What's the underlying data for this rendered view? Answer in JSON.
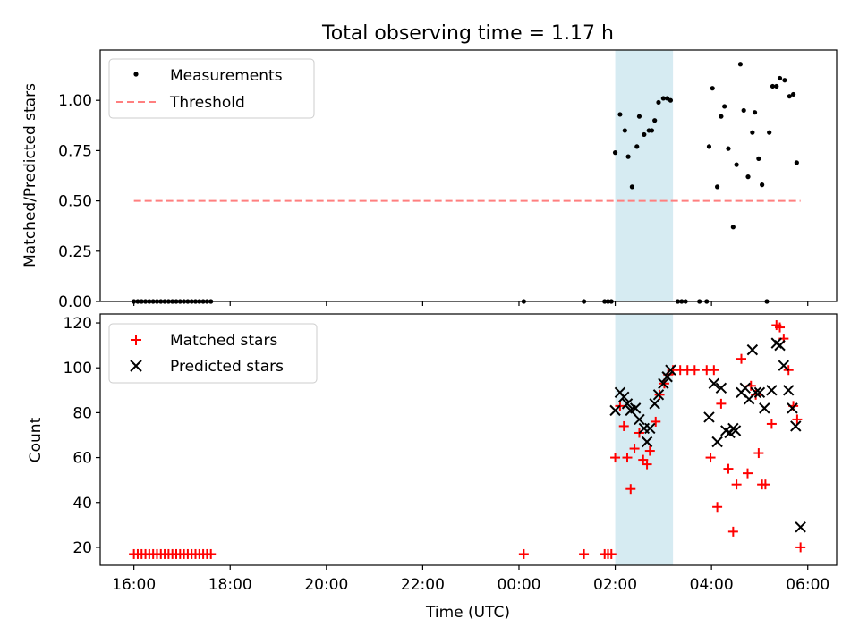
{
  "figure": {
    "title": "Total observing time = 1.17 h",
    "xlabel": "Time (UTC)"
  },
  "chart_data": [
    {
      "type": "scatter",
      "ylabel": "Matched/Predicted stars",
      "xlim_hours": [
        -0.7,
        14.6
      ],
      "ylim": [
        0,
        1.25
      ],
      "yticks": [
        0.0,
        0.25,
        0.5,
        0.75,
        1.0
      ],
      "ytick_labels": [
        "0.00",
        "0.25",
        "0.50",
        "0.75",
        "1.00"
      ],
      "shaded_span_hours": [
        10.0,
        11.2
      ],
      "legend_position": "upper left",
      "legend": [
        {
          "label": "Measurements",
          "marker": "dot",
          "color": "#000000"
        },
        {
          "label": "Threshold",
          "marker": "dashed-line",
          "color": "#ff7f7f"
        }
      ],
      "threshold": {
        "y": 0.5,
        "x_from_hours": 0.0,
        "x_to_hours": 13.85
      },
      "series": [
        {
          "name": "Measurements",
          "color": "#000000",
          "points": [
            [
              0.0,
              0
            ],
            [
              0.08,
              0
            ],
            [
              0.16,
              0
            ],
            [
              0.24,
              0
            ],
            [
              0.32,
              0
            ],
            [
              0.4,
              0
            ],
            [
              0.48,
              0
            ],
            [
              0.56,
              0
            ],
            [
              0.64,
              0
            ],
            [
              0.72,
              0
            ],
            [
              0.8,
              0
            ],
            [
              0.88,
              0
            ],
            [
              0.96,
              0
            ],
            [
              1.04,
              0
            ],
            [
              1.12,
              0
            ],
            [
              1.2,
              0
            ],
            [
              1.28,
              0
            ],
            [
              1.36,
              0
            ],
            [
              1.44,
              0
            ],
            [
              1.52,
              0
            ],
            [
              1.6,
              0
            ],
            [
              8.1,
              0
            ],
            [
              9.35,
              0
            ],
            [
              9.78,
              0
            ],
            [
              9.85,
              0
            ],
            [
              9.92,
              0
            ],
            [
              10.0,
              0.74
            ],
            [
              10.1,
              0.93
            ],
            [
              10.2,
              0.85
            ],
            [
              10.27,
              0.72
            ],
            [
              10.35,
              0.57
            ],
            [
              10.45,
              0.77
            ],
            [
              10.5,
              0.92
            ],
            [
              10.6,
              0.83
            ],
            [
              10.7,
              0.85
            ],
            [
              10.76,
              0.85
            ],
            [
              10.82,
              0.9
            ],
            [
              10.9,
              0.99
            ],
            [
              11.0,
              1.01
            ],
            [
              11.08,
              1.01
            ],
            [
              11.15,
              1.0
            ],
            [
              11.3,
              0
            ],
            [
              11.38,
              0
            ],
            [
              11.46,
              0
            ],
            [
              11.75,
              0
            ],
            [
              11.9,
              0
            ],
            [
              11.95,
              0.77
            ],
            [
              12.02,
              1.06
            ],
            [
              12.12,
              0.57
            ],
            [
              12.2,
              0.92
            ],
            [
              12.27,
              0.97
            ],
            [
              12.35,
              0.76
            ],
            [
              12.45,
              0.37
            ],
            [
              12.52,
              0.68
            ],
            [
              12.6,
              1.18
            ],
            [
              12.67,
              0.95
            ],
            [
              12.76,
              0.62
            ],
            [
              12.85,
              0.84
            ],
            [
              12.9,
              0.94
            ],
            [
              12.98,
              0.71
            ],
            [
              13.05,
              0.58
            ],
            [
              13.15,
              0
            ],
            [
              13.2,
              0.84
            ],
            [
              13.27,
              1.07
            ],
            [
              13.35,
              1.07
            ],
            [
              13.42,
              1.11
            ],
            [
              13.52,
              1.1
            ],
            [
              13.62,
              1.02
            ],
            [
              13.7,
              1.03
            ],
            [
              13.77,
              0.69
            ]
          ]
        }
      ]
    },
    {
      "type": "scatter",
      "ylabel": "Count",
      "xlabel": "Time (UTC)",
      "xlim_hours": [
        -0.7,
        14.6
      ],
      "ylim": [
        12,
        124
      ],
      "yticks": [
        20,
        40,
        60,
        80,
        100,
        120
      ],
      "ytick_labels": [
        "20",
        "40",
        "60",
        "80",
        "100",
        "120"
      ],
      "xticks_hours": [
        0,
        2,
        4,
        6,
        8,
        10,
        12,
        14
      ],
      "xtick_labels": [
        "16:00",
        "18:00",
        "20:00",
        "22:00",
        "00:00",
        "02:00",
        "04:00",
        "06:00"
      ],
      "shaded_span_hours": [
        10.0,
        11.2
      ],
      "legend_position": "upper left",
      "legend": [
        {
          "label": "Matched stars",
          "marker": "plus",
          "color": "#ff0000"
        },
        {
          "label": "Predicted stars",
          "marker": "x",
          "color": "#000000"
        }
      ],
      "series": [
        {
          "name": "Matched stars",
          "color": "#ff0000",
          "points": [
            [
              0.0,
              17
            ],
            [
              0.08,
              17
            ],
            [
              0.16,
              17
            ],
            [
              0.24,
              17
            ],
            [
              0.32,
              17
            ],
            [
              0.4,
              17
            ],
            [
              0.48,
              17
            ],
            [
              0.56,
              17
            ],
            [
              0.64,
              17
            ],
            [
              0.72,
              17
            ],
            [
              0.8,
              17
            ],
            [
              0.88,
              17
            ],
            [
              0.96,
              17
            ],
            [
              1.04,
              17
            ],
            [
              1.12,
              17
            ],
            [
              1.2,
              17
            ],
            [
              1.28,
              17
            ],
            [
              1.36,
              17
            ],
            [
              1.44,
              17
            ],
            [
              1.52,
              17
            ],
            [
              1.6,
              17
            ],
            [
              8.1,
              17
            ],
            [
              9.35,
              17
            ],
            [
              9.78,
              17
            ],
            [
              9.85,
              17
            ],
            [
              9.92,
              17
            ],
            [
              10.0,
              60
            ],
            [
              10.1,
              83
            ],
            [
              10.18,
              74
            ],
            [
              10.25,
              60
            ],
            [
              10.32,
              46
            ],
            [
              10.4,
              64
            ],
            [
              10.5,
              71
            ],
            [
              10.58,
              59
            ],
            [
              10.66,
              57
            ],
            [
              10.72,
              63
            ],
            [
              10.84,
              76
            ],
            [
              10.92,
              88
            ],
            [
              11.02,
              93
            ],
            [
              11.1,
              97
            ],
            [
              11.2,
              99
            ],
            [
              11.35,
              99
            ],
            [
              11.5,
              99
            ],
            [
              11.65,
              99
            ],
            [
              11.9,
              99
            ],
            [
              11.98,
              60
            ],
            [
              12.05,
              99
            ],
            [
              12.12,
              38
            ],
            [
              12.2,
              84
            ],
            [
              12.35,
              55
            ],
            [
              12.45,
              27
            ],
            [
              12.52,
              48
            ],
            [
              12.62,
              104
            ],
            [
              12.75,
              53
            ],
            [
              12.82,
              92
            ],
            [
              12.92,
              88
            ],
            [
              12.98,
              62
            ],
            [
              13.05,
              48
            ],
            [
              13.12,
              48
            ],
            [
              13.25,
              75
            ],
            [
              13.35,
              119
            ],
            [
              13.42,
              118
            ],
            [
              13.5,
              113
            ],
            [
              13.6,
              99
            ],
            [
              13.7,
              83
            ],
            [
              13.78,
              77
            ],
            [
              13.85,
              20
            ]
          ]
        },
        {
          "name": "Predicted stars",
          "color": "#000000",
          "points": [
            [
              10.0,
              81
            ],
            [
              10.1,
              89
            ],
            [
              10.18,
              87
            ],
            [
              10.25,
              84
            ],
            [
              10.32,
              81
            ],
            [
              10.42,
              82
            ],
            [
              10.5,
              77
            ],
            [
              10.6,
              73
            ],
            [
              10.66,
              67
            ],
            [
              10.72,
              73
            ],
            [
              10.82,
              84
            ],
            [
              10.9,
              88
            ],
            [
              11.0,
              93
            ],
            [
              11.08,
              96
            ],
            [
              11.15,
              99
            ],
            [
              11.95,
              78
            ],
            [
              12.05,
              93
            ],
            [
              12.12,
              67
            ],
            [
              12.2,
              91
            ],
            [
              12.3,
              72
            ],
            [
              12.38,
              71
            ],
            [
              12.45,
              73
            ],
            [
              12.5,
              72
            ],
            [
              12.62,
              89
            ],
            [
              12.7,
              91
            ],
            [
              12.78,
              86
            ],
            [
              12.85,
              108
            ],
            [
              12.92,
              89
            ],
            [
              13.0,
              89
            ],
            [
              13.1,
              82
            ],
            [
              13.25,
              90
            ],
            [
              13.35,
              111
            ],
            [
              13.42,
              110
            ],
            [
              13.5,
              101
            ],
            [
              13.6,
              90
            ],
            [
              13.68,
              82
            ],
            [
              13.75,
              74
            ],
            [
              13.85,
              29
            ]
          ]
        }
      ]
    }
  ]
}
